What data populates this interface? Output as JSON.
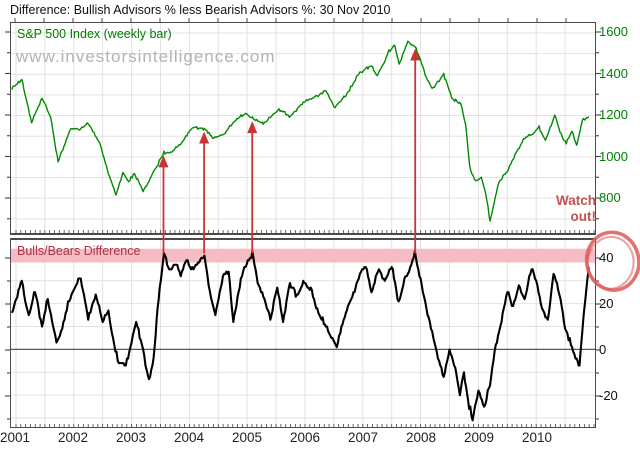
{
  "title": "Difference: Bullish Advisors % less Bearish Advisors %: 30 Nov 2010",
  "watermark": "www.investorsintelligence.com",
  "top_panel": {
    "label": "S&P 500 Index (weekly bar)"
  },
  "bottom_panel": {
    "label": "Bulls/Bears Difference"
  },
  "x_axis": {
    "year_labels": [
      "2001",
      "2002",
      "2003",
      "2004",
      "2005",
      "2006",
      "2007",
      "2008",
      "2009",
      "2010"
    ]
  },
  "colors": {
    "sp500_line": "#008a00",
    "sp500_label": "#008000",
    "bulls_line": "#000000",
    "bulls_label": "#a8334a",
    "danger_band": "#f5bcc2",
    "annotation_red": "#cc3333",
    "watch_out_red": "#c4524e",
    "grid": "#e2e2e2",
    "axis": "#444444",
    "zero_line": "#555555",
    "watermark": "#b3b3b3"
  },
  "chart_data": [
    {
      "type": "line",
      "series_name": "S&P 500 Index (weekly bar)",
      "panel": "top",
      "frequency": "weekly",
      "x_range": [
        2000.93,
        2010.92
      ],
      "ylim": [
        645,
        1650
      ],
      "yticks": [
        1600,
        1400,
        1200,
        1000,
        800
      ],
      "grid_step": 100,
      "keypoints": [
        [
          2000.93,
          1330
        ],
        [
          2001.1,
          1375
        ],
        [
          2001.27,
          1165
        ],
        [
          2001.45,
          1285
        ],
        [
          2001.6,
          1190
        ],
        [
          2001.73,
          975
        ],
        [
          2001.95,
          1140
        ],
        [
          2002.1,
          1130
        ],
        [
          2002.25,
          1165
        ],
        [
          2002.45,
          1065
        ],
        [
          2002.6,
          920
        ],
        [
          2002.73,
          815
        ],
        [
          2002.85,
          925
        ],
        [
          2002.95,
          880
        ],
        [
          2003.05,
          920
        ],
        [
          2003.2,
          835
        ],
        [
          2003.4,
          935
        ],
        [
          2003.56,
          1020
        ],
        [
          2003.7,
          1025
        ],
        [
          2003.9,
          1080
        ],
        [
          2004.05,
          1145
        ],
        [
          2004.26,
          1135
        ],
        [
          2004.42,
          1090
        ],
        [
          2004.6,
          1110
        ],
        [
          2004.8,
          1180
        ],
        [
          2004.97,
          1210
        ],
        [
          2005.09,
          1185
        ],
        [
          2005.28,
          1160
        ],
        [
          2005.55,
          1230
        ],
        [
          2005.75,
          1195
        ],
        [
          2005.95,
          1260
        ],
        [
          2006.15,
          1290
        ],
        [
          2006.36,
          1320
        ],
        [
          2006.52,
          1240
        ],
        [
          2006.75,
          1315
        ],
        [
          2006.95,
          1410
        ],
        [
          2007.15,
          1440
        ],
        [
          2007.25,
          1390
        ],
        [
          2007.45,
          1510
        ],
        [
          2007.55,
          1540
        ],
        [
          2007.63,
          1450
        ],
        [
          2007.78,
          1560
        ],
        [
          2007.9,
          1535
        ],
        [
          2008.0,
          1470
        ],
        [
          2008.08,
          1395
        ],
        [
          2008.2,
          1330
        ],
        [
          2008.4,
          1400
        ],
        [
          2008.55,
          1280
        ],
        [
          2008.7,
          1255
        ],
        [
          2008.78,
          1150
        ],
        [
          2008.85,
          950
        ],
        [
          2008.95,
          880
        ],
        [
          2009.05,
          900
        ],
        [
          2009.13,
          820
        ],
        [
          2009.2,
          690
        ],
        [
          2009.35,
          875
        ],
        [
          2009.5,
          930
        ],
        [
          2009.65,
          1020
        ],
        [
          2009.8,
          1090
        ],
        [
          2009.95,
          1110
        ],
        [
          2010.05,
          1145
        ],
        [
          2010.16,
          1075
        ],
        [
          2010.32,
          1200
        ],
        [
          2010.45,
          1090
        ],
        [
          2010.52,
          1070
        ],
        [
          2010.62,
          1120
        ],
        [
          2010.7,
          1055
        ],
        [
          2010.8,
          1175
        ],
        [
          2010.91,
          1195
        ]
      ]
    },
    {
      "type": "line",
      "series_name": "Bulls/Bears Difference",
      "panel": "bottom",
      "frequency": "weekly",
      "x_range": [
        2000.93,
        2010.91
      ],
      "ylim": [
        -34,
        47
      ],
      "yticks": [
        40,
        20,
        0,
        -20
      ],
      "grid_step": 10,
      "zero_line": true,
      "danger_band": [
        38,
        44
      ],
      "keypoints": [
        [
          2000.93,
          16
        ],
        [
          2001.1,
          30
        ],
        [
          2001.22,
          14
        ],
        [
          2001.33,
          26
        ],
        [
          2001.45,
          10
        ],
        [
          2001.55,
          22
        ],
        [
          2001.7,
          3
        ],
        [
          2001.8,
          9
        ],
        [
          2001.9,
          20
        ],
        [
          2002.0,
          26
        ],
        [
          2002.12,
          31
        ],
        [
          2002.25,
          14
        ],
        [
          2002.38,
          24
        ],
        [
          2002.5,
          12
        ],
        [
          2002.6,
          17
        ],
        [
          2002.7,
          2
        ],
        [
          2002.78,
          -6
        ],
        [
          2002.9,
          -7
        ],
        [
          2003.0,
          3
        ],
        [
          2003.08,
          12
        ],
        [
          2003.18,
          2
        ],
        [
          2003.3,
          -14
        ],
        [
          2003.38,
          -4
        ],
        [
          2003.45,
          18
        ],
        [
          2003.56,
          42
        ],
        [
          2003.65,
          34
        ],
        [
          2003.75,
          38
        ],
        [
          2003.85,
          33
        ],
        [
          2003.95,
          39
        ],
        [
          2004.05,
          35
        ],
        [
          2004.15,
          38
        ],
        [
          2004.26,
          42
        ],
        [
          2004.35,
          25
        ],
        [
          2004.45,
          15
        ],
        [
          2004.58,
          32
        ],
        [
          2004.68,
          34
        ],
        [
          2004.76,
          12
        ],
        [
          2004.85,
          25
        ],
        [
          2004.95,
          36
        ],
        [
          2005.09,
          42
        ],
        [
          2005.2,
          28
        ],
        [
          2005.3,
          22
        ],
        [
          2005.4,
          13
        ],
        [
          2005.52,
          27
        ],
        [
          2005.62,
          12
        ],
        [
          2005.74,
          30
        ],
        [
          2005.86,
          23
        ],
        [
          2005.97,
          30
        ],
        [
          2006.1,
          26
        ],
        [
          2006.25,
          15
        ],
        [
          2006.4,
          8
        ],
        [
          2006.55,
          1
        ],
        [
          2006.65,
          12
        ],
        [
          2006.8,
          22
        ],
        [
          2006.95,
          33
        ],
        [
          2007.05,
          37
        ],
        [
          2007.15,
          25
        ],
        [
          2007.28,
          35
        ],
        [
          2007.38,
          30
        ],
        [
          2007.5,
          37
        ],
        [
          2007.62,
          20
        ],
        [
          2007.72,
          30
        ],
        [
          2007.82,
          36
        ],
        [
          2007.9,
          42
        ],
        [
          2008.0,
          30
        ],
        [
          2008.1,
          18
        ],
        [
          2008.22,
          5
        ],
        [
          2008.32,
          -5
        ],
        [
          2008.4,
          -12
        ],
        [
          2008.5,
          0
        ],
        [
          2008.6,
          -8
        ],
        [
          2008.68,
          -19
        ],
        [
          2008.75,
          -10
        ],
        [
          2008.82,
          -22
        ],
        [
          2008.9,
          -31
        ],
        [
          2009.0,
          -18
        ],
        [
          2009.1,
          -25
        ],
        [
          2009.2,
          -15
        ],
        [
          2009.3,
          2
        ],
        [
          2009.4,
          12
        ],
        [
          2009.5,
          25
        ],
        [
          2009.6,
          18
        ],
        [
          2009.7,
          28
        ],
        [
          2009.8,
          22
        ],
        [
          2009.92,
          36
        ],
        [
          2010.0,
          30
        ],
        [
          2010.1,
          18
        ],
        [
          2010.2,
          12
        ],
        [
          2010.3,
          33
        ],
        [
          2010.4,
          25
        ],
        [
          2010.5,
          10
        ],
        [
          2010.6,
          2
        ],
        [
          2010.68,
          -3
        ],
        [
          2010.75,
          -8
        ],
        [
          2010.82,
          15
        ],
        [
          2010.91,
          36
        ]
      ]
    }
  ],
  "annotations": {
    "watch_out_lines": [
      "Watch",
      "out!"
    ],
    "signal_arrows": [
      {
        "year": 2003.56,
        "sp500": 1020,
        "bulls_bears": 42
      },
      {
        "year": 2004.26,
        "sp500": 1135,
        "bulls_bears": 42
      },
      {
        "year": 2005.09,
        "sp500": 1185,
        "bulls_bears": 42
      },
      {
        "year": 2007.9,
        "sp500": 1535,
        "bulls_bears": 42
      }
    ],
    "circle_highlight": {
      "year": 2010.91,
      "value": 36
    }
  }
}
